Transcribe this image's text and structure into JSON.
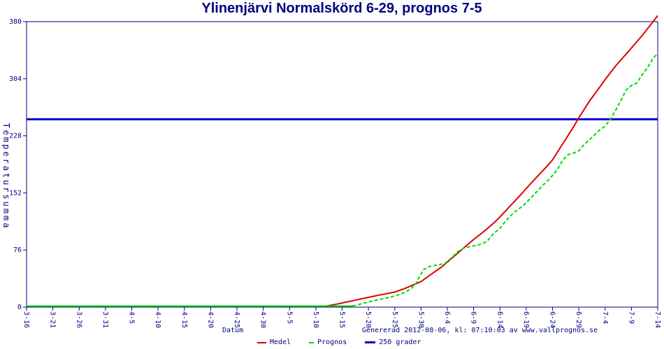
{
  "title": "Ylinenjärvi Normalskörd 6-29, prognos 7-5",
  "footer": {
    "generated": "Genererad 2012-08-06, kl: 07:10:03 av www.vallprognos.se"
  },
  "colors": {
    "axis": "#000080",
    "text": "#000080",
    "medel": "#dd0000",
    "prognos": "#00dd00",
    "limit_line": "#0000cc",
    "background": "#ffffff"
  },
  "chart_data": {
    "type": "line",
    "title": "Ylinenjärvi Normalskörd 6-29, prognos 7-5",
    "xlabel": "Datum",
    "ylabel": "Temperatursumma",
    "ylim": [
      0,
      380
    ],
    "y_ticks": [
      0,
      76,
      152,
      228,
      304,
      380
    ],
    "xlim_days": [
      0,
      120
    ],
    "grid": "off",
    "legend_position": "bottom",
    "x_ticks": [
      {
        "day": 0,
        "label": "3-16"
      },
      {
        "day": 5,
        "label": "3-21"
      },
      {
        "day": 10,
        "label": "3-26"
      },
      {
        "day": 15,
        "label": "3-31"
      },
      {
        "day": 20,
        "label": "4-5"
      },
      {
        "day": 25,
        "label": "4-10"
      },
      {
        "day": 30,
        "label": "4-15"
      },
      {
        "day": 35,
        "label": "4-20"
      },
      {
        "day": 40,
        "label": "4-25"
      },
      {
        "day": 45,
        "label": "4-30"
      },
      {
        "day": 50,
        "label": "5-5"
      },
      {
        "day": 55,
        "label": "5-10"
      },
      {
        "day": 60,
        "label": "5-15"
      },
      {
        "day": 65,
        "label": "5-20"
      },
      {
        "day": 70,
        "label": "5-25"
      },
      {
        "day": 75,
        "label": "5-30"
      },
      {
        "day": 80,
        "label": "6-4"
      },
      {
        "day": 85,
        "label": "6-9"
      },
      {
        "day": 90,
        "label": "6-14"
      },
      {
        "day": 95,
        "label": "6-19"
      },
      {
        "day": 100,
        "label": "6-24"
      },
      {
        "day": 105,
        "label": "6-29"
      },
      {
        "day": 110,
        "label": "7-4"
      },
      {
        "day": 115,
        "label": "7-9"
      },
      {
        "day": 120,
        "label": "7-14"
      }
    ],
    "series": [
      {
        "name": "Medel",
        "color": "#dd0000",
        "width": 2,
        "z": 1,
        "segments": [
          {
            "dash": "",
            "points": [
              [
                0,
                0
              ],
              [
                57,
                0
              ],
              [
                59,
                4
              ],
              [
                61,
                7
              ],
              [
                63,
                10
              ],
              [
                65,
                13
              ],
              [
                67,
                16
              ],
              [
                70,
                20
              ],
              [
                72,
                25
              ],
              [
                74,
                31
              ],
              [
                75,
                34
              ],
              [
                77,
                44
              ],
              [
                79,
                54
              ],
              [
                81,
                66
              ],
              [
                83,
                78
              ],
              [
                85,
                90
              ],
              [
                87,
                101
              ],
              [
                89,
                113
              ],
              [
                90,
                120
              ],
              [
                92,
                135
              ],
              [
                94,
                150
              ],
              [
                95,
                158
              ],
              [
                97,
                173
              ],
              [
                99,
                188
              ],
              [
                100,
                196
              ],
              [
                102,
                218
              ],
              [
                104,
                240
              ],
              [
                105,
                252
              ],
              [
                107,
                274
              ],
              [
                109,
                293
              ],
              [
                110,
                303
              ],
              [
                112,
                321
              ],
              [
                114,
                337
              ],
              [
                115,
                345
              ],
              [
                117,
                361
              ],
              [
                119,
                379
              ],
              [
                120,
                388
              ]
            ]
          }
        ]
      },
      {
        "name": "Prognos",
        "color": "#00dd00",
        "width": 2,
        "z": 2,
        "segments": [
          {
            "dash": "",
            "points": [
              [
                0,
                0
              ],
              [
                62,
                0
              ]
            ]
          },
          {
            "dash": "5,3",
            "points": [
              [
                62,
                0
              ],
              [
                64,
                5
              ],
              [
                65,
                7
              ],
              [
                67,
                10
              ],
              [
                69,
                13
              ],
              [
                70,
                15
              ],
              [
                71,
                17
              ],
              [
                72,
                20
              ],
              [
                73,
                24
              ],
              [
                74,
                31
              ],
              [
                74.8,
                42
              ],
              [
                75.5,
                50
              ],
              [
                76.5,
                54
              ],
              [
                78,
                56
              ],
              [
                79.5,
                58
              ],
              [
                80,
                61
              ],
              [
                81,
                67
              ],
              [
                82,
                74
              ],
              [
                83,
                78
              ],
              [
                84.5,
                81
              ],
              [
                86,
                83
              ],
              [
                87.5,
                87
              ],
              [
                88.5,
                96
              ],
              [
                90,
                105
              ],
              [
                91.5,
                118
              ],
              [
                92.5,
                125
              ],
              [
                94,
                133
              ],
              [
                95,
                139
              ],
              [
                96.5,
                150
              ],
              [
                98,
                161
              ],
              [
                99.5,
                171
              ],
              [
                101,
                184
              ],
              [
                102,
                196
              ],
              [
                103,
                203
              ],
              [
                104,
                205
              ],
              [
                105,
                208
              ],
              [
                106,
                216
              ],
              [
                107.5,
                226
              ],
              [
                109,
                236
              ],
              [
                110,
                241
              ],
              [
                111,
                250
              ],
              [
                112,
                262
              ],
              [
                113,
                275
              ],
              [
                114,
                289
              ],
              [
                115,
                295
              ],
              [
                116,
                298
              ],
              [
                117,
                309
              ],
              [
                118,
                318
              ],
              [
                119,
                330
              ],
              [
                120,
                338
              ]
            ]
          }
        ]
      },
      {
        "name": "250 grader",
        "color": "#0000cc",
        "width": 3,
        "z": 0,
        "segments": [
          {
            "dash": "",
            "points": [
              [
                0,
                250
              ],
              [
                120,
                250
              ]
            ]
          }
        ]
      }
    ]
  }
}
